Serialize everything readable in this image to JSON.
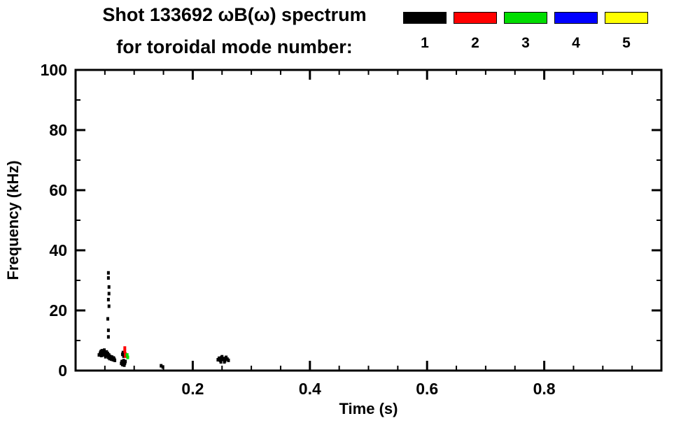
{
  "header": {
    "title_line1": "Shot 133692 ωB(ω) spectrum",
    "title_line2": "for toroidal mode number:"
  },
  "legend": {
    "position": "top-right",
    "entries": [
      {
        "label": "1",
        "color": "#000000"
      },
      {
        "label": "2",
        "color": "#ff0000"
      },
      {
        "label": "3",
        "color": "#00dd00"
      },
      {
        "label": "4",
        "color": "#0000ff"
      },
      {
        "label": "5",
        "color": "#ffff00"
      }
    ]
  },
  "chart_data": {
    "type": "scatter",
    "title": "Shot 133692 ωB(ω) spectrum for toroidal mode number:",
    "xlabel": "Time (s)",
    "ylabel": "Frequency (kHz)",
    "xlim": [
      0,
      1.0
    ],
    "ylim": [
      0,
      100
    ],
    "x_ticks": [
      0.2,
      0.4,
      0.6,
      0.8
    ],
    "y_ticks": [
      0,
      20,
      40,
      60,
      80,
      100
    ],
    "x_minor_step": 0.05,
    "y_minor_step": 10,
    "grid": false,
    "legend_position": "top-right",
    "series": [
      {
        "name": "mode 1",
        "color": "#000000",
        "points": [
          [
            0.04,
            5.2
          ],
          [
            0.042,
            5.8
          ],
          [
            0.043,
            6.3
          ],
          [
            0.044,
            5.0
          ],
          [
            0.045,
            6.6
          ],
          [
            0.046,
            5.6
          ],
          [
            0.047,
            6.1
          ],
          [
            0.048,
            5.2
          ],
          [
            0.049,
            6.8
          ],
          [
            0.05,
            5.9
          ],
          [
            0.051,
            4.6
          ],
          [
            0.052,
            5.4
          ],
          [
            0.053,
            6.2
          ],
          [
            0.054,
            5.0
          ],
          [
            0.055,
            5.7
          ],
          [
            0.056,
            4.4
          ],
          [
            0.057,
            5.2
          ],
          [
            0.058,
            4.0
          ],
          [
            0.059,
            4.7
          ],
          [
            0.06,
            4.3
          ],
          [
            0.061,
            3.8
          ],
          [
            0.062,
            4.5
          ],
          [
            0.063,
            4.0
          ],
          [
            0.064,
            3.6
          ],
          [
            0.065,
            4.2
          ],
          [
            0.066,
            3.8
          ],
          [
            0.067,
            3.4
          ],
          [
            0.056,
            32.5
          ],
          [
            0.056,
            30.8
          ],
          [
            0.057,
            27.8
          ],
          [
            0.057,
            25.6
          ],
          [
            0.056,
            23.6
          ],
          [
            0.057,
            21.4
          ],
          [
            0.055,
            17.2
          ],
          [
            0.056,
            13.4
          ],
          [
            0.056,
            11.2
          ],
          [
            0.078,
            2.4
          ],
          [
            0.079,
            3.0
          ],
          [
            0.08,
            2.0
          ],
          [
            0.081,
            2.7
          ],
          [
            0.082,
            3.3
          ],
          [
            0.083,
            1.8
          ],
          [
            0.084,
            2.4
          ],
          [
            0.085,
            3.0
          ],
          [
            0.08,
            5.4
          ],
          [
            0.081,
            6.0
          ],
          [
            0.082,
            4.8
          ],
          [
            0.146,
            1.6
          ],
          [
            0.149,
            1.2
          ],
          [
            0.243,
            3.6
          ],
          [
            0.245,
            4.1
          ],
          [
            0.247,
            3.4
          ],
          [
            0.249,
            4.3
          ],
          [
            0.251,
            3.7
          ],
          [
            0.253,
            4.0
          ],
          [
            0.255,
            3.3
          ],
          [
            0.257,
            4.4
          ],
          [
            0.259,
            3.8
          ],
          [
            0.261,
            3.4
          ],
          [
            0.248,
            2.9
          ],
          [
            0.254,
            2.9
          ],
          [
            0.25,
            4.6
          ]
        ]
      },
      {
        "name": "mode 2",
        "color": "#ff0000",
        "points": [
          [
            0.084,
            7.5
          ],
          [
            0.084,
            6.5
          ],
          [
            0.085,
            5.5
          ],
          [
            0.085,
            4.8
          ]
        ]
      },
      {
        "name": "mode 3",
        "color": "#00dd00",
        "points": [
          [
            0.088,
            5.2
          ],
          [
            0.089,
            4.4
          ]
        ]
      },
      {
        "name": "mode 4",
        "color": "#0000ff",
        "points": []
      },
      {
        "name": "mode 5",
        "color": "#ffff00",
        "points": []
      }
    ]
  }
}
